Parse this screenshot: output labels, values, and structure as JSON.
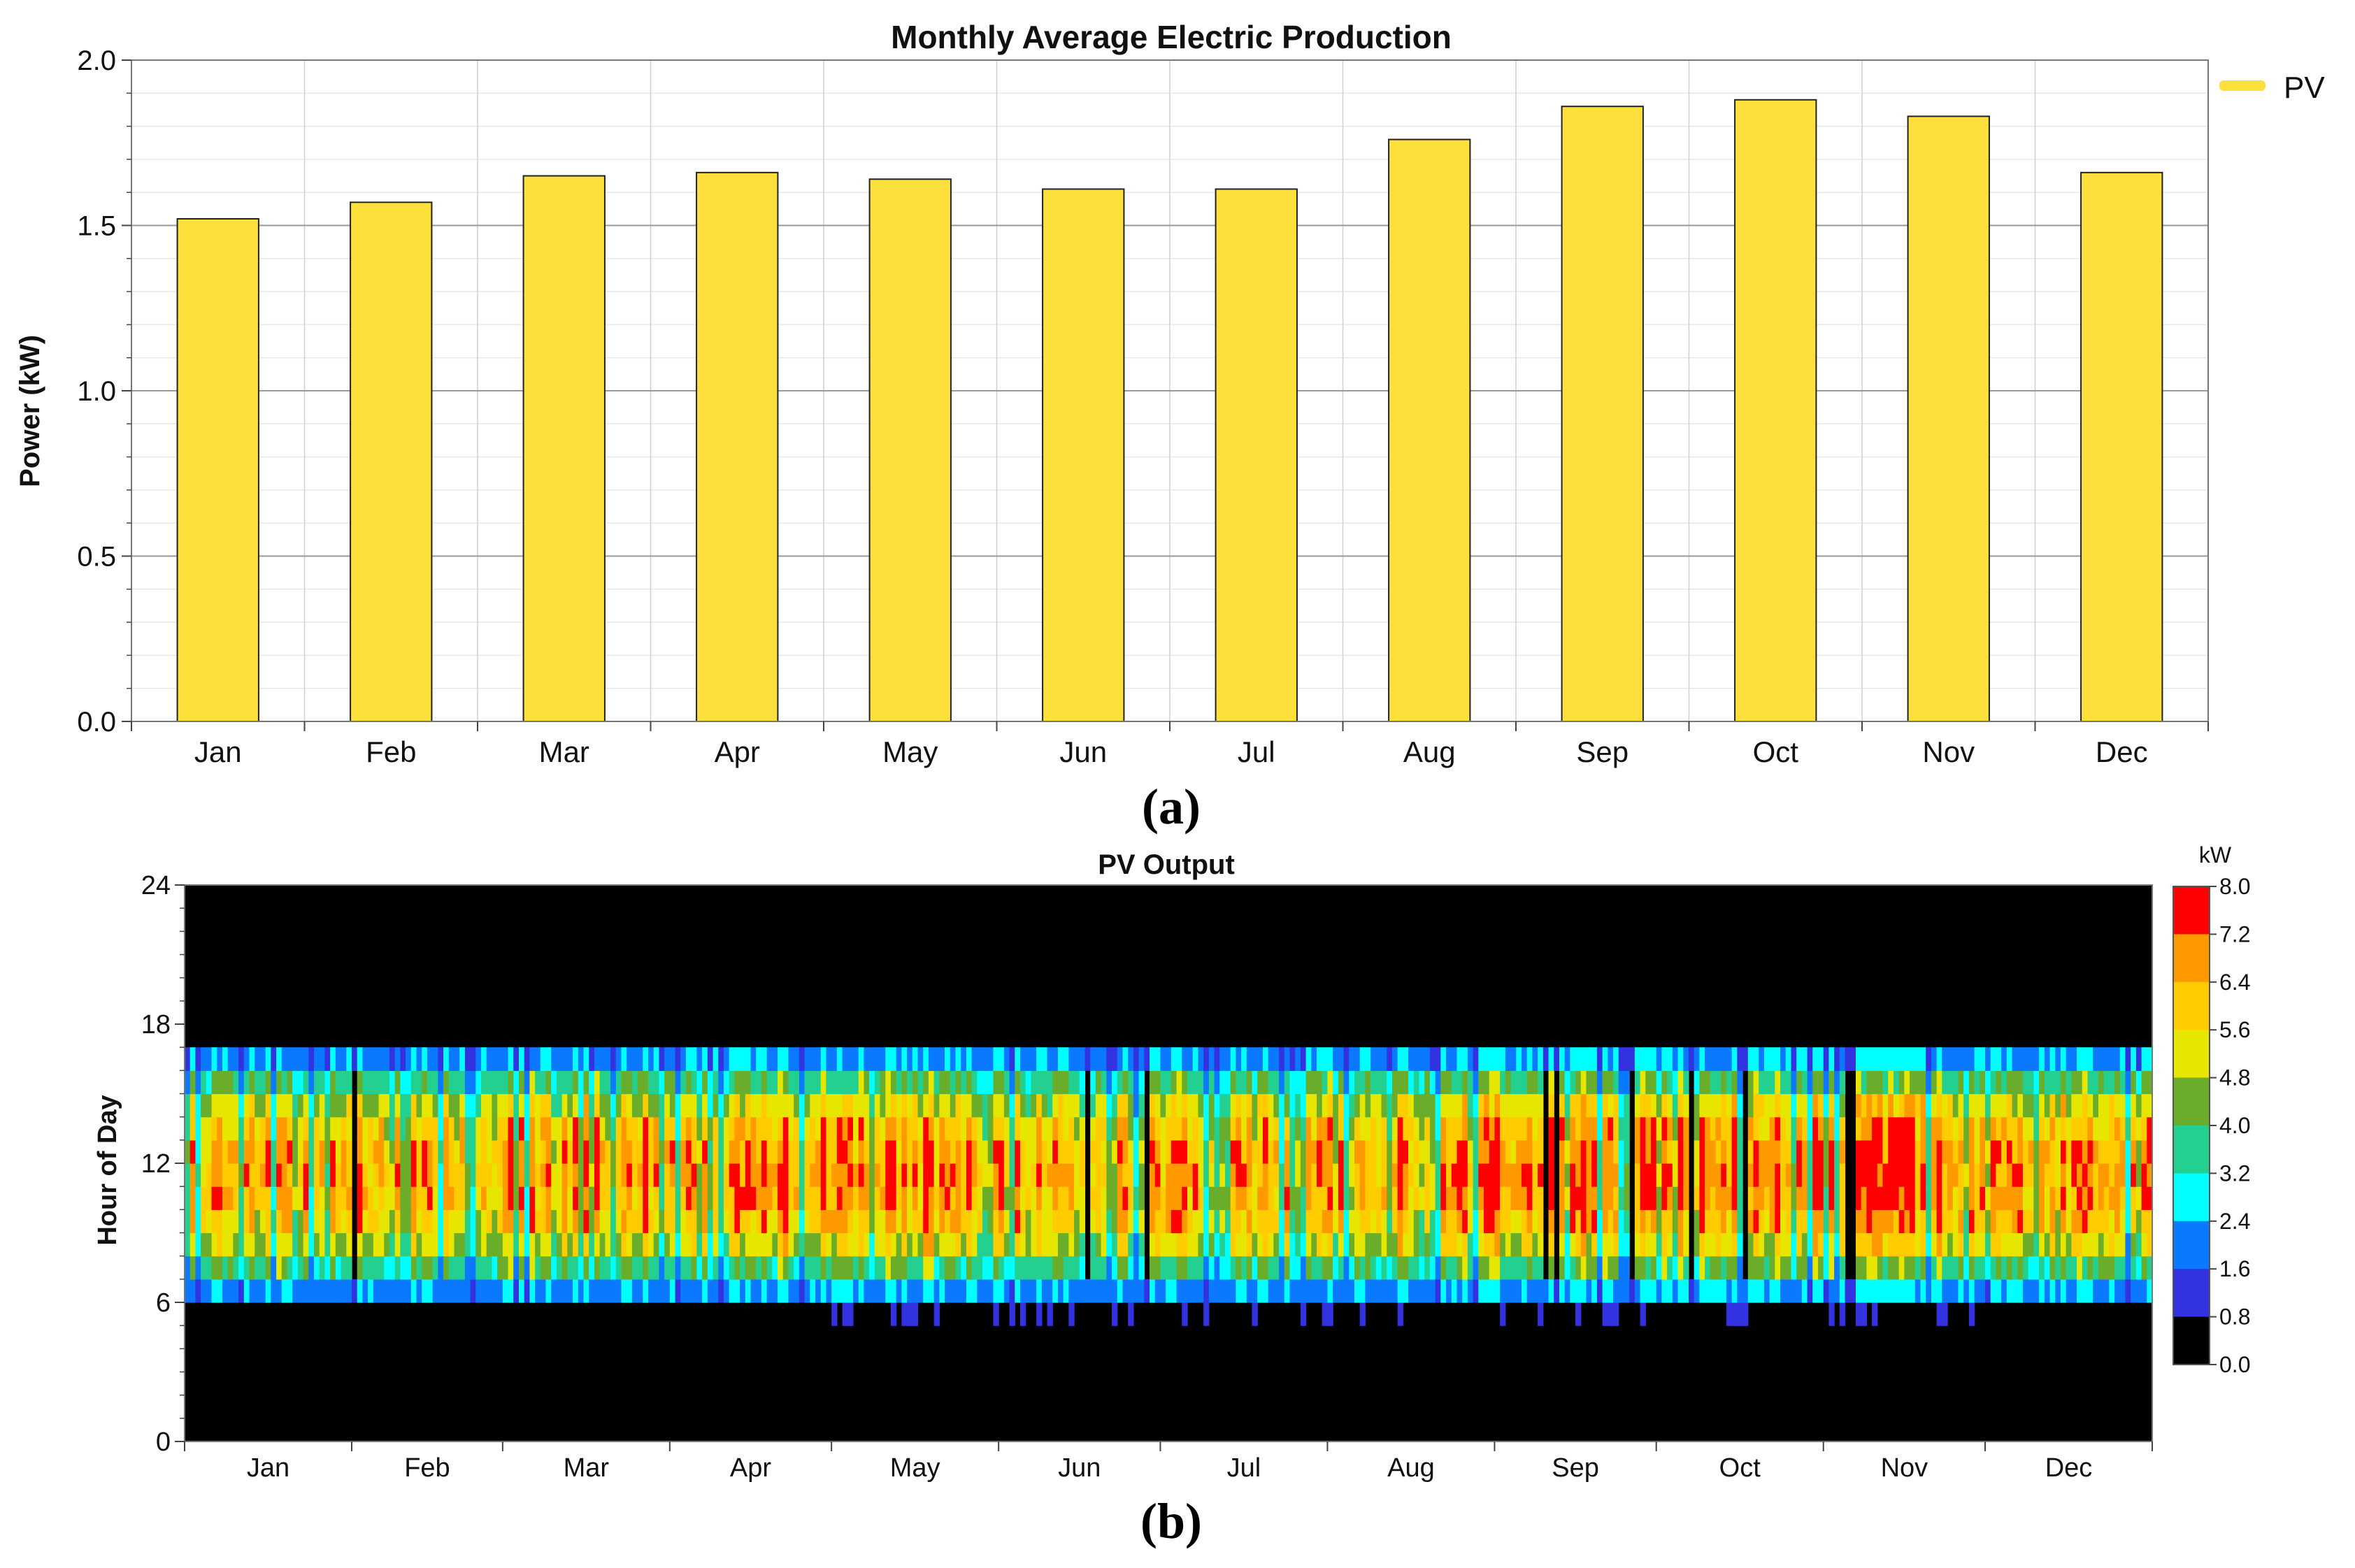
{
  "chart_data": [
    {
      "type": "bar",
      "caption": "(a)",
      "title": "Monthly Average Electric Production",
      "xlabel": "",
      "ylabel": "Power (kW)",
      "ylim": [
        0,
        2.0
      ],
      "yticks": [
        "0.0",
        "0.5",
        "1.0",
        "1.5",
        "2.0"
      ],
      "ytick_values": [
        0,
        0.5,
        1.0,
        1.5,
        2.0
      ],
      "categories": [
        "Jan",
        "Feb",
        "Mar",
        "Apr",
        "May",
        "Jun",
        "Jul",
        "Aug",
        "Sep",
        "Oct",
        "Nov",
        "Dec"
      ],
      "series": [
        {
          "name": "PV",
          "color": "#fde03c",
          "values": [
            1.52,
            1.57,
            1.65,
            1.66,
            1.64,
            1.61,
            1.61,
            1.76,
            1.86,
            1.88,
            1.83,
            1.66
          ]
        }
      ],
      "grid": true,
      "legend": "top-right"
    },
    {
      "type": "heatmap",
      "caption": "(b)",
      "title": "PV Output",
      "xlabel": "",
      "ylabel": "Hour of Day",
      "ylim": [
        0,
        24
      ],
      "yticks": [
        "0",
        "6",
        "12",
        "18",
        "24"
      ],
      "ytick_values": [
        0,
        6,
        12,
        18,
        24
      ],
      "months": [
        "Jan",
        "Feb",
        "Mar",
        "Apr",
        "May",
        "Jun",
        "Jul",
        "Aug",
        "Sep",
        "Oct",
        "Nov",
        "Dec"
      ],
      "days_in_month": [
        31,
        28,
        31,
        30,
        31,
        30,
        31,
        31,
        30,
        31,
        30,
        31
      ],
      "daylight_hours": [
        6,
        17
      ],
      "midday_typical_kw": [
        5.4,
        5.6,
        5.8,
        5.8,
        5.6,
        5.4,
        5.4,
        5.9,
        6.2,
        6.1,
        6.0,
        5.6
      ],
      "colorbar": {
        "unit": "kW",
        "ticks": [
          "8.0",
          "7.2",
          "6.4",
          "5.6",
          "4.8",
          "4.0",
          "3.2",
          "2.4",
          "1.6",
          "0.8",
          "0.0"
        ],
        "colors": [
          "#ff0000",
          "#ff9900",
          "#ffcc00",
          "#e6e600",
          "#6aad2a",
          "#24d090",
          "#00ffff",
          "#0a78ff",
          "#3232e0",
          "#000000"
        ]
      }
    }
  ]
}
